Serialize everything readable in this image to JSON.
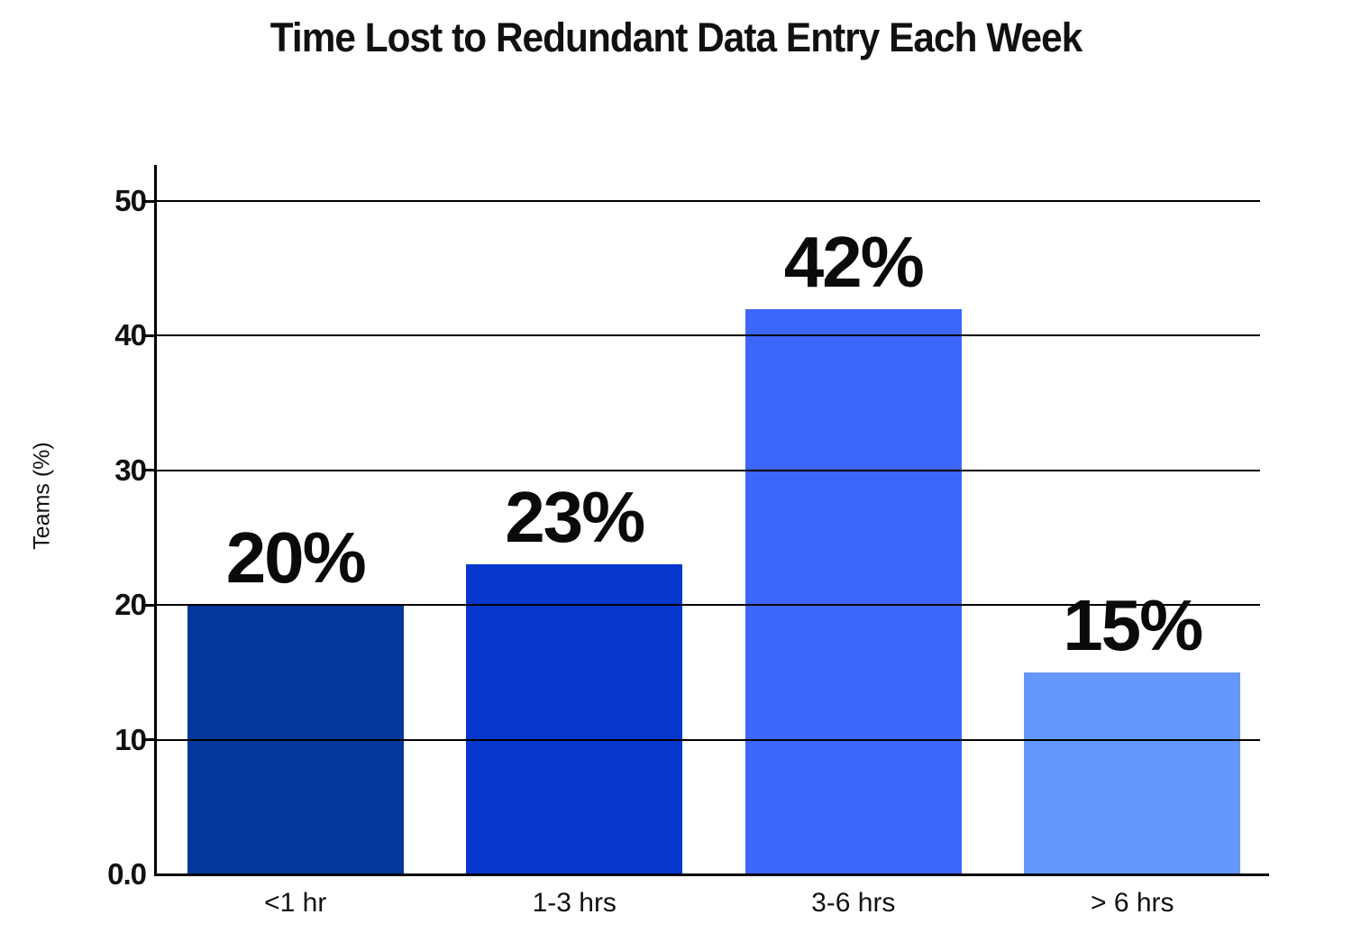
{
  "title": "Time Lost to Redundant Data Entry Each Week",
  "chart_data": {
    "type": "bar",
    "title": "Time Lost to Redundant Data Entry Each Week",
    "xlabel": "",
    "ylabel": "Teams (%)",
    "categories": [
      "<1 hr",
      "1-3 hrs",
      "3-6 hrs",
      "> 6 hrs"
    ],
    "values": [
      20,
      23,
      42,
      15
    ],
    "value_labels": [
      "20%",
      "23%",
      "42%",
      "15%"
    ],
    "bar_colors": [
      "#04379a",
      "#0536cd",
      "#3d66fa",
      "#6397fa"
    ],
    "ylim": [
      0,
      50
    ],
    "yticks": [
      0,
      10,
      20,
      30,
      40,
      50
    ],
    "ytick_labels": [
      "0.0",
      "10",
      "20",
      "30",
      "40",
      "50"
    ],
    "grid": "horizontal black gridlines drawn over bars",
    "legend": "none",
    "axis_color": "#000000",
    "label_color": "#0a0a0a",
    "background_color": "#ffffff"
  }
}
